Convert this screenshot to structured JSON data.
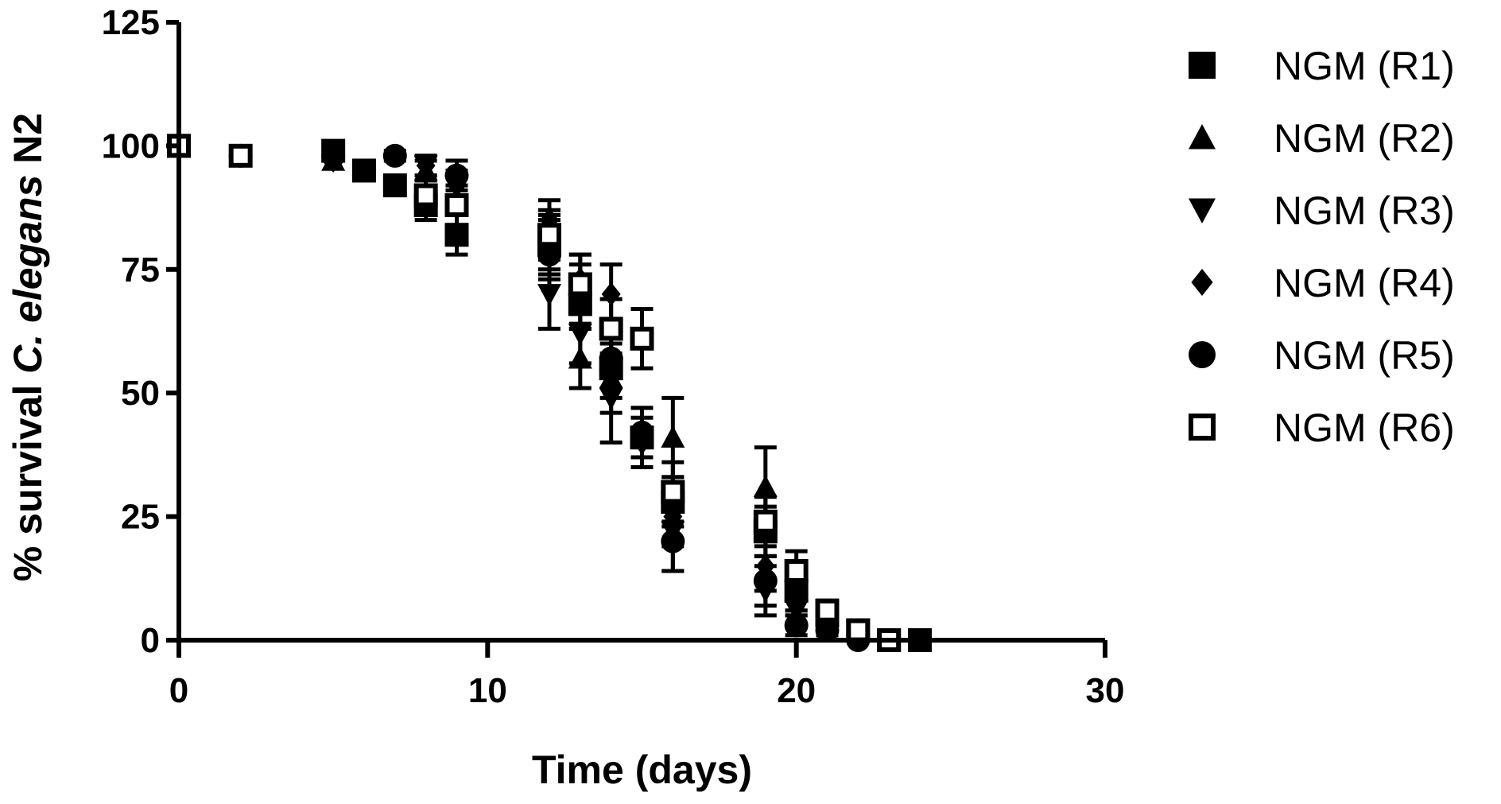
{
  "chart_data": {
    "type": "scatter",
    "xlabel": "Time (days)",
    "ylabel_parts": [
      {
        "text": "% survival ",
        "italic": false
      },
      {
        "text": "C. elegans",
        "italic": true
      },
      {
        "text": " N2",
        "italic": false
      }
    ],
    "xlim": [
      0,
      30
    ],
    "ylim": [
      0,
      125
    ],
    "xticks": [
      "0",
      "10",
      "20",
      "30"
    ],
    "yticks": [
      "0",
      "25",
      "50",
      "75",
      "100",
      "125"
    ],
    "grid": false,
    "legend_position": "right",
    "marker_color": "#000000",
    "series": [
      {
        "name": "NGM (R1)",
        "marker": "square",
        "x": [
          0,
          5,
          6,
          7,
          8,
          9,
          12,
          13,
          14,
          15,
          16,
          19,
          20,
          21,
          22,
          23,
          24
        ],
        "y": [
          100,
          99,
          95,
          92,
          88,
          82,
          80,
          68,
          55,
          41,
          28,
          22,
          10,
          5,
          2,
          0,
          0
        ],
        "err": [
          0,
          0,
          2,
          2,
          3,
          4,
          5,
          5,
          6,
          6,
          5,
          5,
          4,
          2,
          1,
          0,
          0
        ]
      },
      {
        "name": "NGM (R2)",
        "marker": "triangle-up",
        "x": [
          0,
          5,
          8,
          12,
          13,
          14,
          16,
          19,
          20,
          21,
          22,
          23
        ],
        "y": [
          100,
          97,
          95,
          80,
          57,
          53,
          41,
          31,
          10,
          4,
          2,
          0
        ],
        "err": [
          0,
          0,
          2,
          6,
          6,
          7,
          8,
          8,
          4,
          2,
          1,
          0
        ]
      },
      {
        "name": "NGM (R3)",
        "marker": "triangle-down",
        "x": [
          0,
          5,
          8,
          12,
          13,
          14,
          16,
          19,
          20,
          21,
          22
        ],
        "y": [
          100,
          98,
          96,
          70,
          62,
          49,
          22,
          10,
          6,
          2,
          0
        ],
        "err": [
          0,
          0,
          2,
          7,
          6,
          9,
          8,
          5,
          3,
          1,
          0
        ]
      },
      {
        "name": "NGM (R4)",
        "marker": "diamond",
        "x": [
          0,
          2,
          5,
          8,
          9,
          12,
          13,
          14,
          15,
          16,
          19,
          20,
          21,
          22,
          23
        ],
        "y": [
          100,
          98,
          97,
          96,
          92,
          85,
          73,
          70,
          40,
          25,
          15,
          8,
          3,
          1,
          0
        ],
        "err": [
          0,
          0,
          0,
          2,
          3,
          4,
          5,
          6,
          5,
          6,
          5,
          3,
          2,
          1,
          0
        ]
      },
      {
        "name": "NGM (R5)",
        "marker": "circle",
        "x": [
          0,
          2,
          5,
          7,
          9,
          12,
          13,
          14,
          15,
          16,
          19,
          20,
          21,
          22
        ],
        "y": [
          100,
          98,
          98,
          98,
          94,
          78,
          70,
          57,
          42,
          20,
          12,
          3,
          2,
          0
        ],
        "err": [
          0,
          0,
          0,
          1,
          3,
          5,
          6,
          6,
          5,
          6,
          5,
          2,
          1,
          0
        ]
      },
      {
        "name": "NGM (R6)",
        "marker": "square-open",
        "x": [
          0,
          2,
          8,
          9,
          12,
          13,
          14,
          15,
          16,
          19,
          20,
          21,
          22,
          23
        ],
        "y": [
          100,
          98,
          90,
          88,
          82,
          72,
          63,
          61,
          30,
          24,
          14,
          6,
          2,
          0
        ],
        "err": [
          0,
          0,
          3,
          4,
          5,
          6,
          6,
          6,
          6,
          5,
          4,
          2,
          1,
          0
        ]
      }
    ]
  }
}
